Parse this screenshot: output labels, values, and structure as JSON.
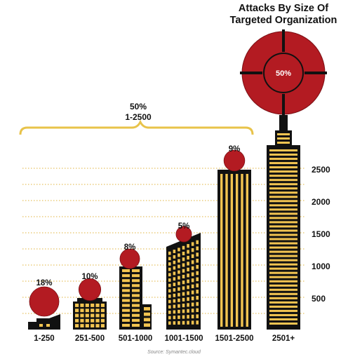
{
  "chart_data": {
    "type": "bar",
    "title_lines": [
      "Attacks By Size Of",
      "Targeted Organization"
    ],
    "xlabel": "",
    "ylabel": "",
    "ylim": [
      0,
      2700
    ],
    "y_ticks": [
      500,
      1000,
      1500,
      2000,
      2500
    ],
    "grid": true,
    "categories": [
      "1-250",
      "251-500",
      "501-1000",
      "1001-1500",
      "1501-2500",
      "2501+"
    ],
    "percentages": [
      "18%",
      "10%",
      "8%",
      "5%",
      "9%",
      "50%"
    ],
    "percent_values": [
      18,
      10,
      8,
      5,
      9,
      50
    ],
    "bracket": {
      "percent": "50%",
      "range": "1-2500"
    },
    "source": "Source: Symantec.cloud"
  },
  "colors": {
    "building": "#111111",
    "window": "#f2c451",
    "circle": "#b31b22",
    "circle_stroke": "#7a0f14",
    "gridline": "#e0b33c",
    "bracket": "#e8c34a"
  }
}
